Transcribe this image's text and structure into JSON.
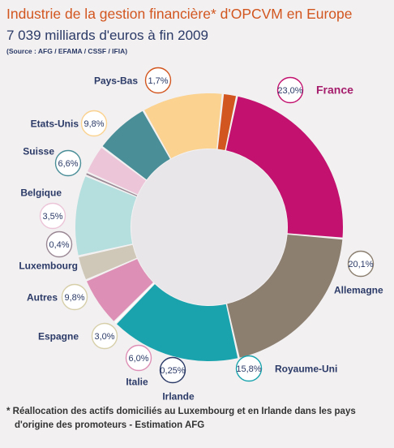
{
  "header": {
    "title": "Industrie de la gestion financière* d'OPCVM en Europe",
    "subtitle": "7 039 milliards d'euros à fin 2009",
    "source": "(Source : AFG / EFAMA / CSSF / IFIA)"
  },
  "footnote": {
    "line1": "* Réallocation des actifs domiciliés au Luxembourg et en Irlande dans les pays",
    "line2": "d'origine des promoteurs - Estimation AFG"
  },
  "chart_data": {
    "type": "pie",
    "variant": "donut",
    "categories": [
      "France",
      "Allemagne",
      "Royaume-Uni",
      "Irlande",
      "Italie",
      "Espagne",
      "Autres",
      "Luxembourg",
      "Belgique",
      "Suisse",
      "Etats-Unis",
      "Pays-Bas"
    ],
    "values": [
      23.0,
      20.1,
      15.8,
      0.25,
      6.0,
      3.0,
      9.8,
      0.4,
      3.5,
      6.6,
      9.8,
      1.7
    ],
    "value_labels": [
      "23,0%",
      "20,1%",
      "15,8%",
      "0,25%",
      "6,0%",
      "3,0%",
      "9,8%",
      "0,4%",
      "3,5%",
      "6,6%",
      "9,8%",
      "1,7%"
    ],
    "colors": [
      "#c2116e",
      "#8c7f70",
      "#1aa3ad",
      "#ffffff",
      "#de8fb5",
      "#cfc8b8",
      "#b5dede",
      "#9a8794",
      "#ecc5d8",
      "#4a8e98",
      "#fbd28f",
      "#d2561f"
    ],
    "label_colors": [
      "#a51d6c",
      "#2b3a67",
      "#2b3a67",
      "#2b3a67",
      "#2b3a67",
      "#2b3a67",
      "#2b3a67",
      "#2b3a67",
      "#2b3a67",
      "#2b3a67",
      "#2b3a67",
      "#2b3a67"
    ],
    "circle_colors": [
      "#c2116e",
      "#8c7f70",
      "#1aa3ad",
      "#2b3a67",
      "#de8fb5",
      "#d7cfa9",
      "#d7cfa9",
      "#9a8794",
      "#ecc5d8",
      "#4a8e98",
      "#fbd28f",
      "#d2561f"
    ],
    "start_angle_deg": 12
  }
}
